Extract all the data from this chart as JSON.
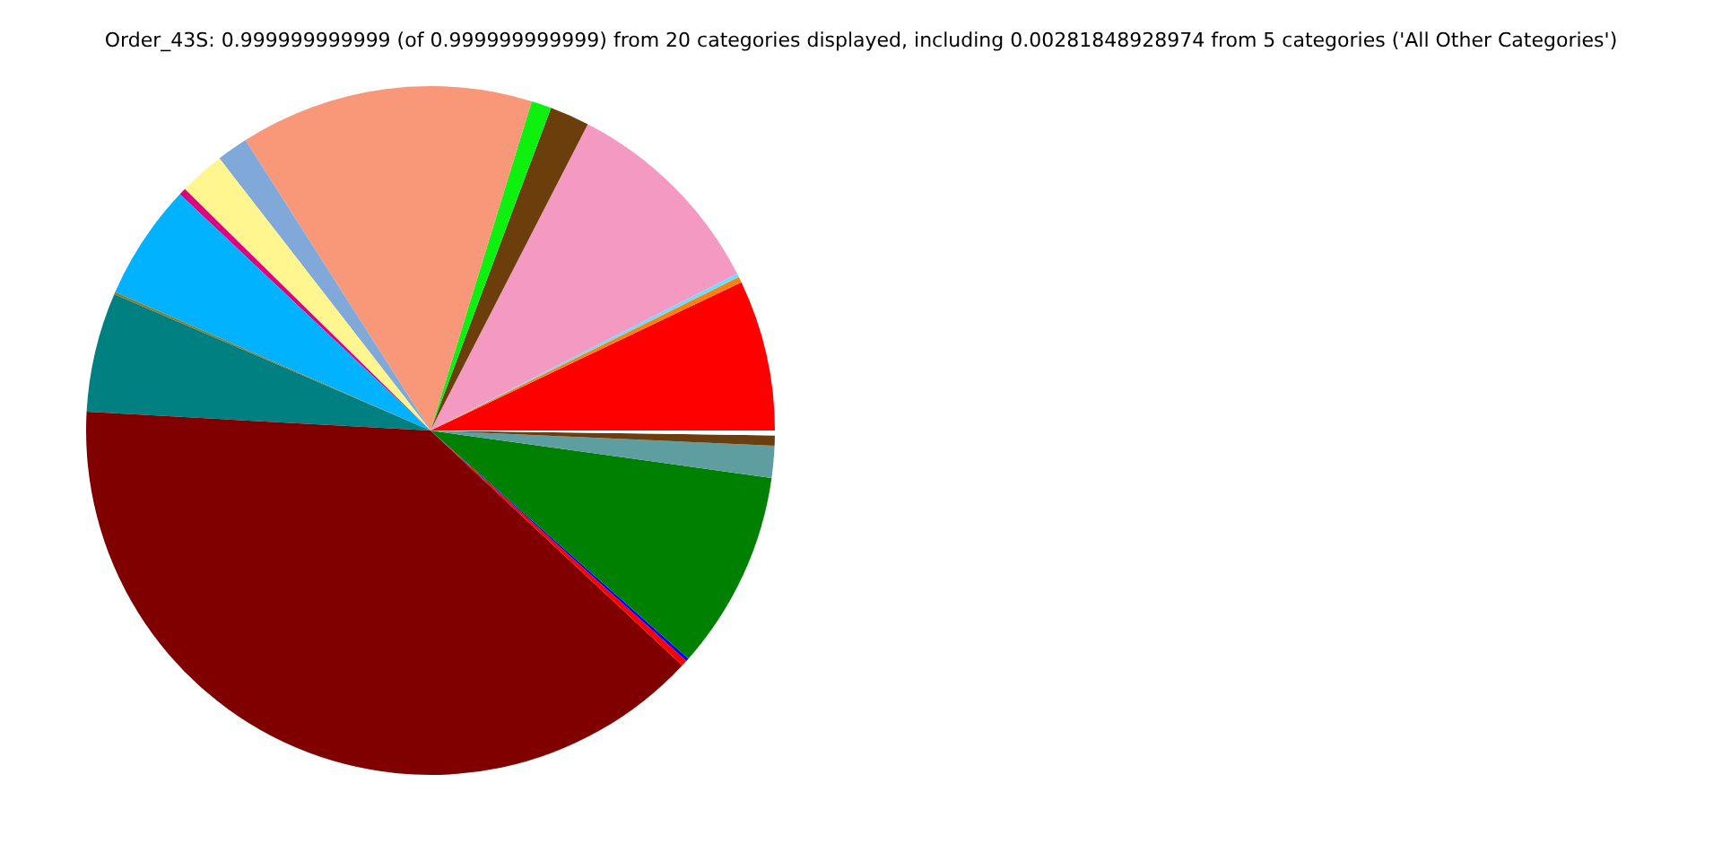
{
  "chart_data": {
    "type": "pie",
    "title": "Order_43S: 0.999999999999 (of 0.999999999999) from 20 categories displayed, including 0.00281848928974 from 5 categories ('All Other Categories')",
    "categories": [
      null,
      null,
      null,
      null,
      null,
      null,
      null,
      null,
      null,
      null,
      null,
      null,
      null,
      null,
      null,
      null,
      null,
      null,
      null,
      null
    ],
    "values": [
      7.08,
      0.28,
      0.17,
      9.92,
      1.86,
      0.94,
      13.78,
      1.47,
      2.14,
      0.33,
      5.44,
      0.11,
      5.61,
      38.92,
      0.28,
      0.14,
      9.33,
      1.5,
      0.47,
      0.23
    ],
    "colors": [
      "#ff0000",
      "#ff7f0e",
      "#66e0ff",
      "#f49ac2",
      "#6b3e0b",
      "#0ef00e",
      "#f89878",
      "#80a8d8",
      "#fff68f",
      "#e0007f",
      "#00b2ff",
      "#8b7d2a",
      "#008080",
      "#800000",
      "#ff0000",
      "#0000ff",
      "#008000",
      "#5f9ea0",
      "#6b3e10",
      "#ffffff"
    ],
    "legend": false
  }
}
